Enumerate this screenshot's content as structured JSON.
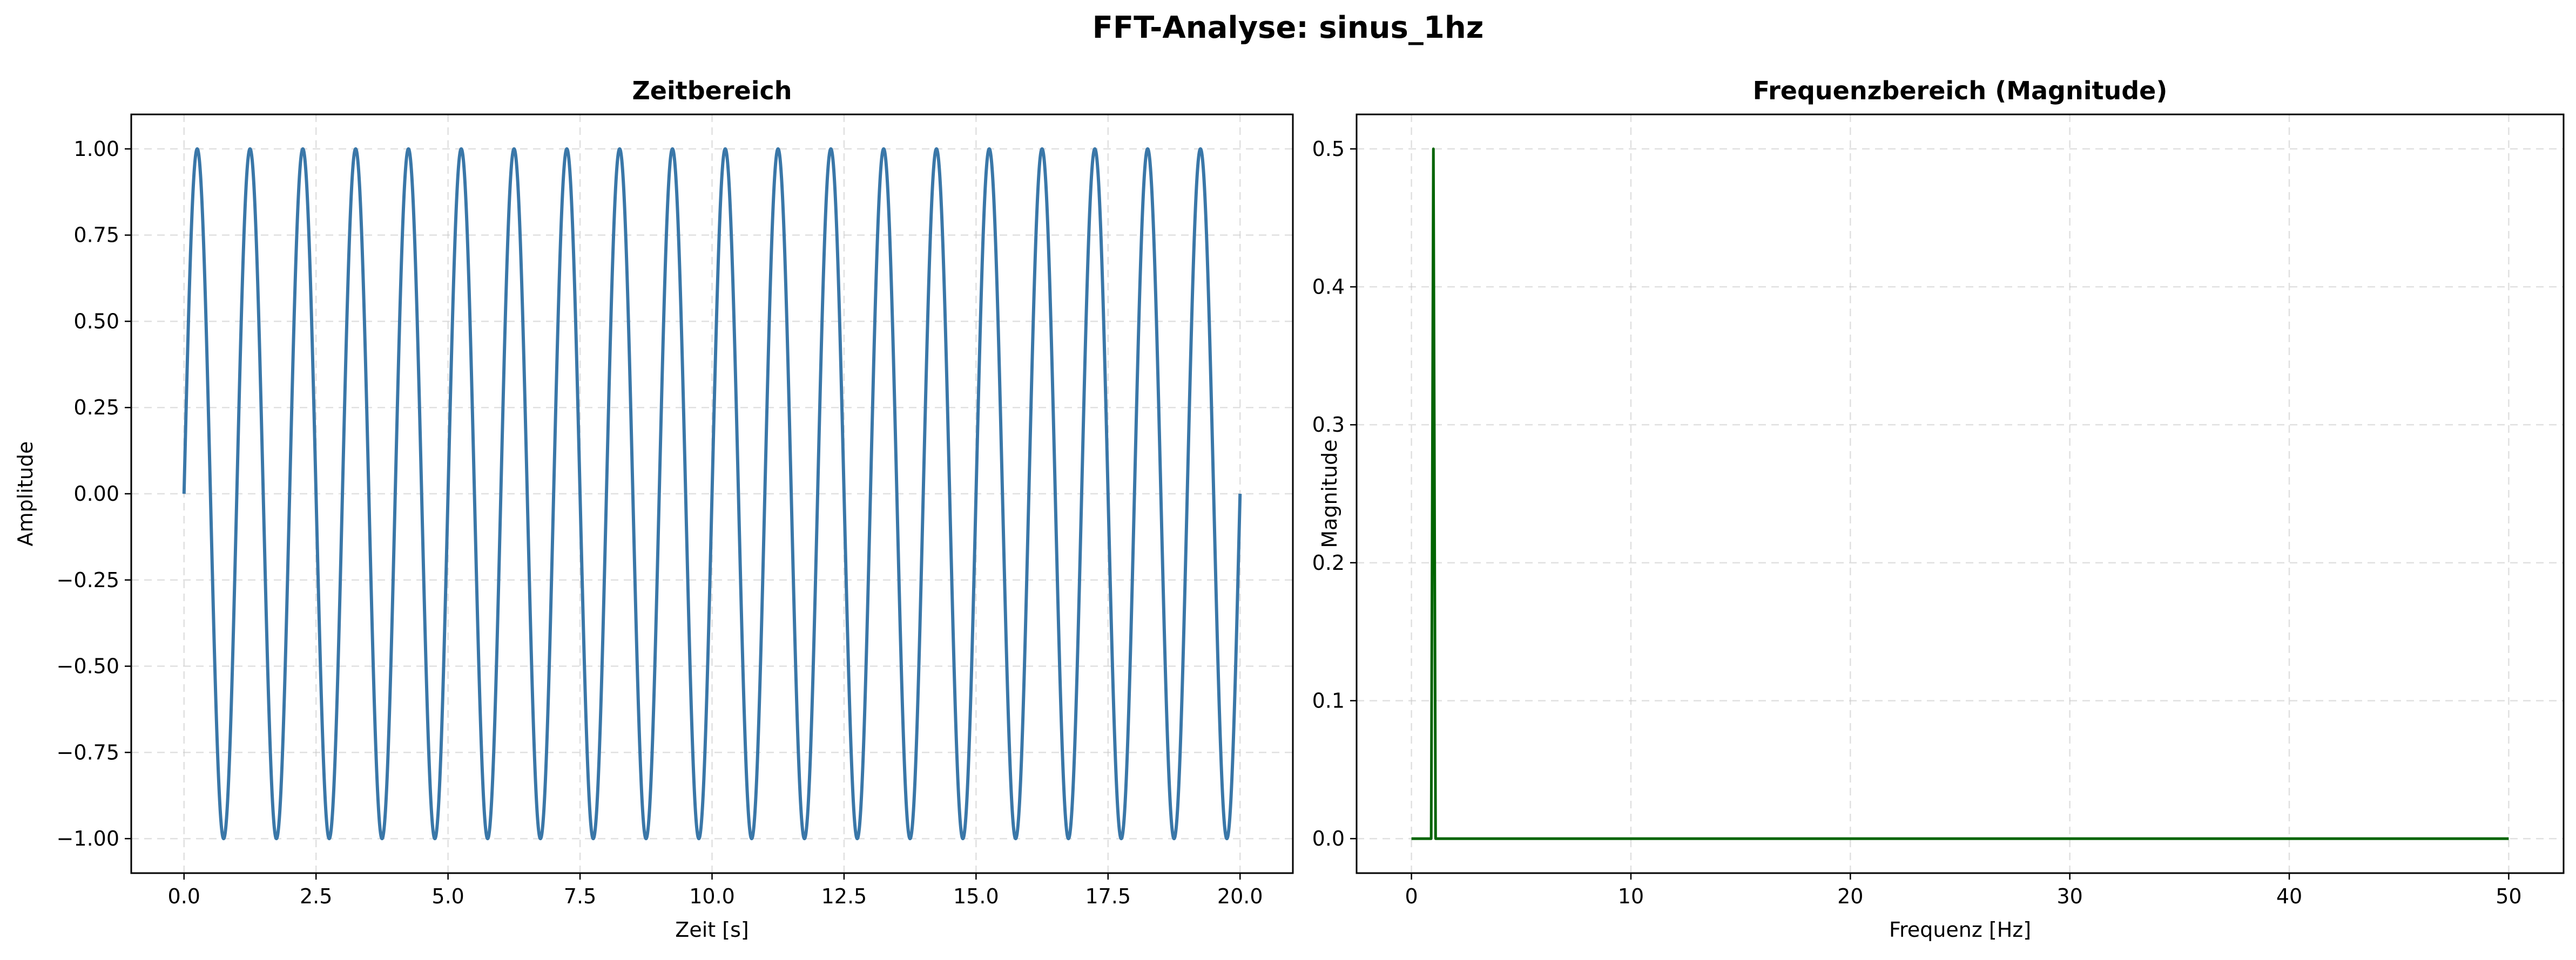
{
  "suptitle": "FFT-Analyse: sinus_1hz",
  "chart_data": [
    {
      "type": "line",
      "title": "Zeitbereich",
      "xlabel": "Zeit [s]",
      "ylabel": "Amplitude",
      "xlim": [
        -1,
        21
      ],
      "ylim": [
        -1.1,
        1.1
      ],
      "xticks": [
        0,
        2.5,
        5,
        7.5,
        10,
        12.5,
        15,
        17.5,
        20
      ],
      "xtick_labels": [
        "0.0",
        "2.5",
        "5.0",
        "7.5",
        "10.0",
        "12.5",
        "15.0",
        "17.5",
        "20.0"
      ],
      "yticks": [
        -1,
        -0.75,
        -0.5,
        -0.25,
        0,
        0.25,
        0.5,
        0.75,
        1
      ],
      "ytick_labels": [
        "−1.00",
        "−0.75",
        "−0.50",
        "−0.25",
        "0.00",
        "0.25",
        "0.50",
        "0.75",
        "1.00"
      ],
      "grid": true,
      "series": [
        {
          "color": "#3a77a8",
          "x": [
            0.0,
            0.25,
            0.5,
            0.75,
            1.0,
            1.25,
            1.5,
            1.75,
            2.0,
            2.25,
            2.5,
            2.75,
            3.0,
            3.25,
            3.5,
            3.75,
            4.0,
            4.25,
            4.5,
            4.75,
            5.0,
            5.25,
            5.5,
            5.75,
            6.0,
            6.25,
            6.5,
            6.75,
            7.0,
            7.25,
            7.5,
            7.75,
            8.0,
            8.25,
            8.5,
            8.75,
            9.0,
            9.25,
            9.5,
            9.75,
            10.0,
            10.25,
            10.5,
            10.75,
            11.0,
            11.25,
            11.5,
            11.75,
            12.0,
            12.25,
            12.5,
            12.75,
            13.0,
            13.25,
            13.5,
            13.75,
            14.0,
            14.25,
            14.5,
            14.75,
            15.0,
            15.25,
            15.5,
            15.75,
            16.0,
            16.25,
            16.5,
            16.75,
            17.0,
            17.25,
            17.5,
            17.75,
            18.0,
            18.25,
            18.5,
            18.75,
            19.0,
            19.25,
            19.5,
            19.75,
            20.0
          ],
          "y": [
            0,
            1,
            0,
            -1,
            0,
            1,
            0,
            -1,
            0,
            1,
            0,
            -1,
            0,
            1,
            0,
            -1,
            0,
            1,
            0,
            -1,
            0,
            1,
            0,
            -1,
            0,
            1,
            0,
            -1,
            0,
            1,
            0,
            -1,
            0,
            1,
            0,
            -1,
            0,
            1,
            0,
            -1,
            0,
            1,
            0,
            -1,
            0,
            1,
            0,
            -1,
            0,
            1,
            0,
            -1,
            0,
            1,
            0,
            -1,
            0,
            1,
            0,
            -1,
            0,
            1,
            0,
            -1,
            0,
            1,
            0,
            -1,
            0,
            1,
            0,
            -1,
            0,
            1,
            0,
            -1,
            0,
            1,
            0,
            -1,
            0
          ]
        }
      ]
    },
    {
      "type": "line",
      "title": "Frequenzbereich (Magnitude)",
      "xlabel": "Frequenz [Hz]",
      "ylabel": "Magnitude",
      "xlim": [
        -2.5,
        52.5
      ],
      "ylim": [
        -0.025,
        0.525
      ],
      "xticks": [
        0,
        10,
        20,
        30,
        40,
        50
      ],
      "xtick_labels": [
        "0",
        "10",
        "20",
        "30",
        "40",
        "50"
      ],
      "yticks": [
        0,
        0.1,
        0.2,
        0.3,
        0.4,
        0.5
      ],
      "ytick_labels": [
        "0.0",
        "0.1",
        "0.2",
        "0.3",
        "0.4",
        "0.5"
      ],
      "grid": true,
      "series": [
        {
          "color": "#006400",
          "x": [
            0.0,
            0.9,
            1.0,
            1.1,
            50.0
          ],
          "y": [
            0.0,
            0.0,
            0.5,
            0.0,
            0.0
          ]
        }
      ]
    }
  ]
}
